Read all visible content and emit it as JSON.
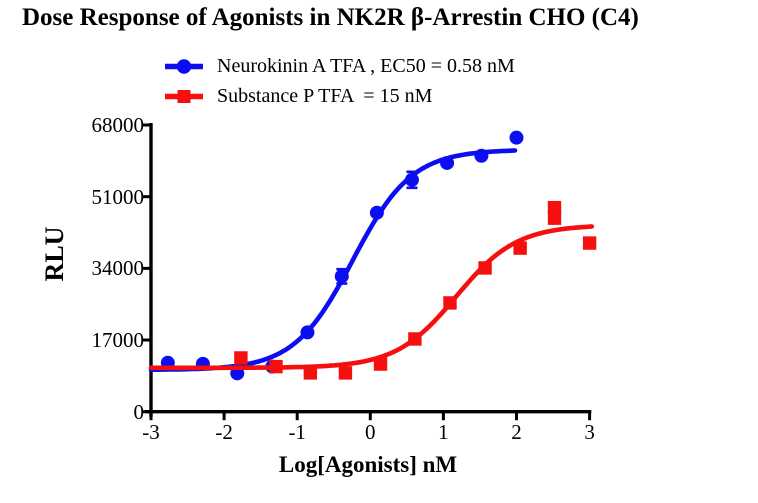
{
  "title": "Dose Response of Agonists in NK2R β-Arrestin CHO (C4)",
  "background_color": "#ffffff",
  "axis_color": "#000000",
  "legend": {
    "items": [
      {
        "label": "Neurokinin A TFA , EC50 = 0.58 nM",
        "marker": "circle",
        "color": "#0d0df2"
      },
      {
        "label": "Substance P TFA  = 15 nM",
        "marker": "square",
        "color": "#f50f0f"
      }
    ]
  },
  "chart_data": {
    "type": "scatter",
    "subtype": "dose-response-sigmoid-fit",
    "title": "Dose Response of Agonists in NK2R β-Arrestin CHO (C4)",
    "xlabel": "Log[Agonists] nM",
    "ylabel": "RLU",
    "xlim": [
      -3,
      3.05
    ],
    "ylim": [
      0,
      68000
    ],
    "grid": false,
    "legend_position": "top",
    "x_ticks": [
      -3,
      -2,
      -1,
      0,
      1,
      2,
      3
    ],
    "x_tick_labels": [
      "-3",
      "-2",
      "-1",
      "0",
      "1",
      "2",
      "3"
    ],
    "y_ticks": [
      0,
      17000,
      34000,
      51000,
      68000
    ],
    "y_tick_labels": [
      "0",
      "17000",
      "34000",
      "51000",
      "68000"
    ],
    "series": [
      {
        "key": "neurokinin-a",
        "name": "Neurokinin A TFA",
        "ec50_nm": 0.58,
        "color": "#0d0df2",
        "marker": "circle",
        "points": [
          {
            "log": -2.77,
            "rlu": 11600
          },
          {
            "log": -2.29,
            "rlu": 11350
          },
          {
            "log": -1.82,
            "rlu": 9100
          },
          {
            "log": -1.34,
            "rlu": 10700
          },
          {
            "log": -0.86,
            "rlu": 18800
          },
          {
            "log": -0.39,
            "rlu": 32100,
            "err": 1700
          },
          {
            "log": 0.09,
            "rlu": 47200
          },
          {
            "log": 0.57,
            "rlu": 55000,
            "err": 1900
          },
          {
            "log": 1.05,
            "rlu": 59000
          },
          {
            "log": 1.52,
            "rlu": 60700
          },
          {
            "log": 2.0,
            "rlu": 65000
          }
        ],
        "fit": {
          "model": "4PL",
          "bottom": 9900,
          "top": 62150,
          "logec50": -0.237,
          "hill": 1.08,
          "range": [
            -3,
            1.98
          ]
        }
      },
      {
        "key": "substance-p",
        "name": "Substance P TFA",
        "ec50_nm": 15,
        "color": "#f50f0f",
        "marker": "square",
        "points": [
          {
            "log": -1.77,
            "rlu": 12750
          },
          {
            "log": -1.29,
            "rlu": 10700
          },
          {
            "log": -0.82,
            "rlu": 9200
          },
          {
            "log": -0.34,
            "rlu": 9200
          },
          {
            "log": 0.14,
            "rlu": 11300
          },
          {
            "log": 0.61,
            "rlu": 17250
          },
          {
            "log": 1.09,
            "rlu": 25800
          },
          {
            "log": 1.57,
            "rlu": 34100
          },
          {
            "log": 2.05,
            "rlu": 38800
          },
          {
            "log": 2.52,
            "rlu": 48400
          },
          {
            "log": 2.52,
            "rlu": 45900
          },
          {
            "log": 3.0,
            "rlu": 40000
          }
        ],
        "fit": {
          "model": "4PL",
          "bottom": 10400,
          "top": 44300,
          "logec50": 1.176,
          "hill": 1.05,
          "range": [
            -3,
            3.03
          ]
        }
      }
    ]
  }
}
